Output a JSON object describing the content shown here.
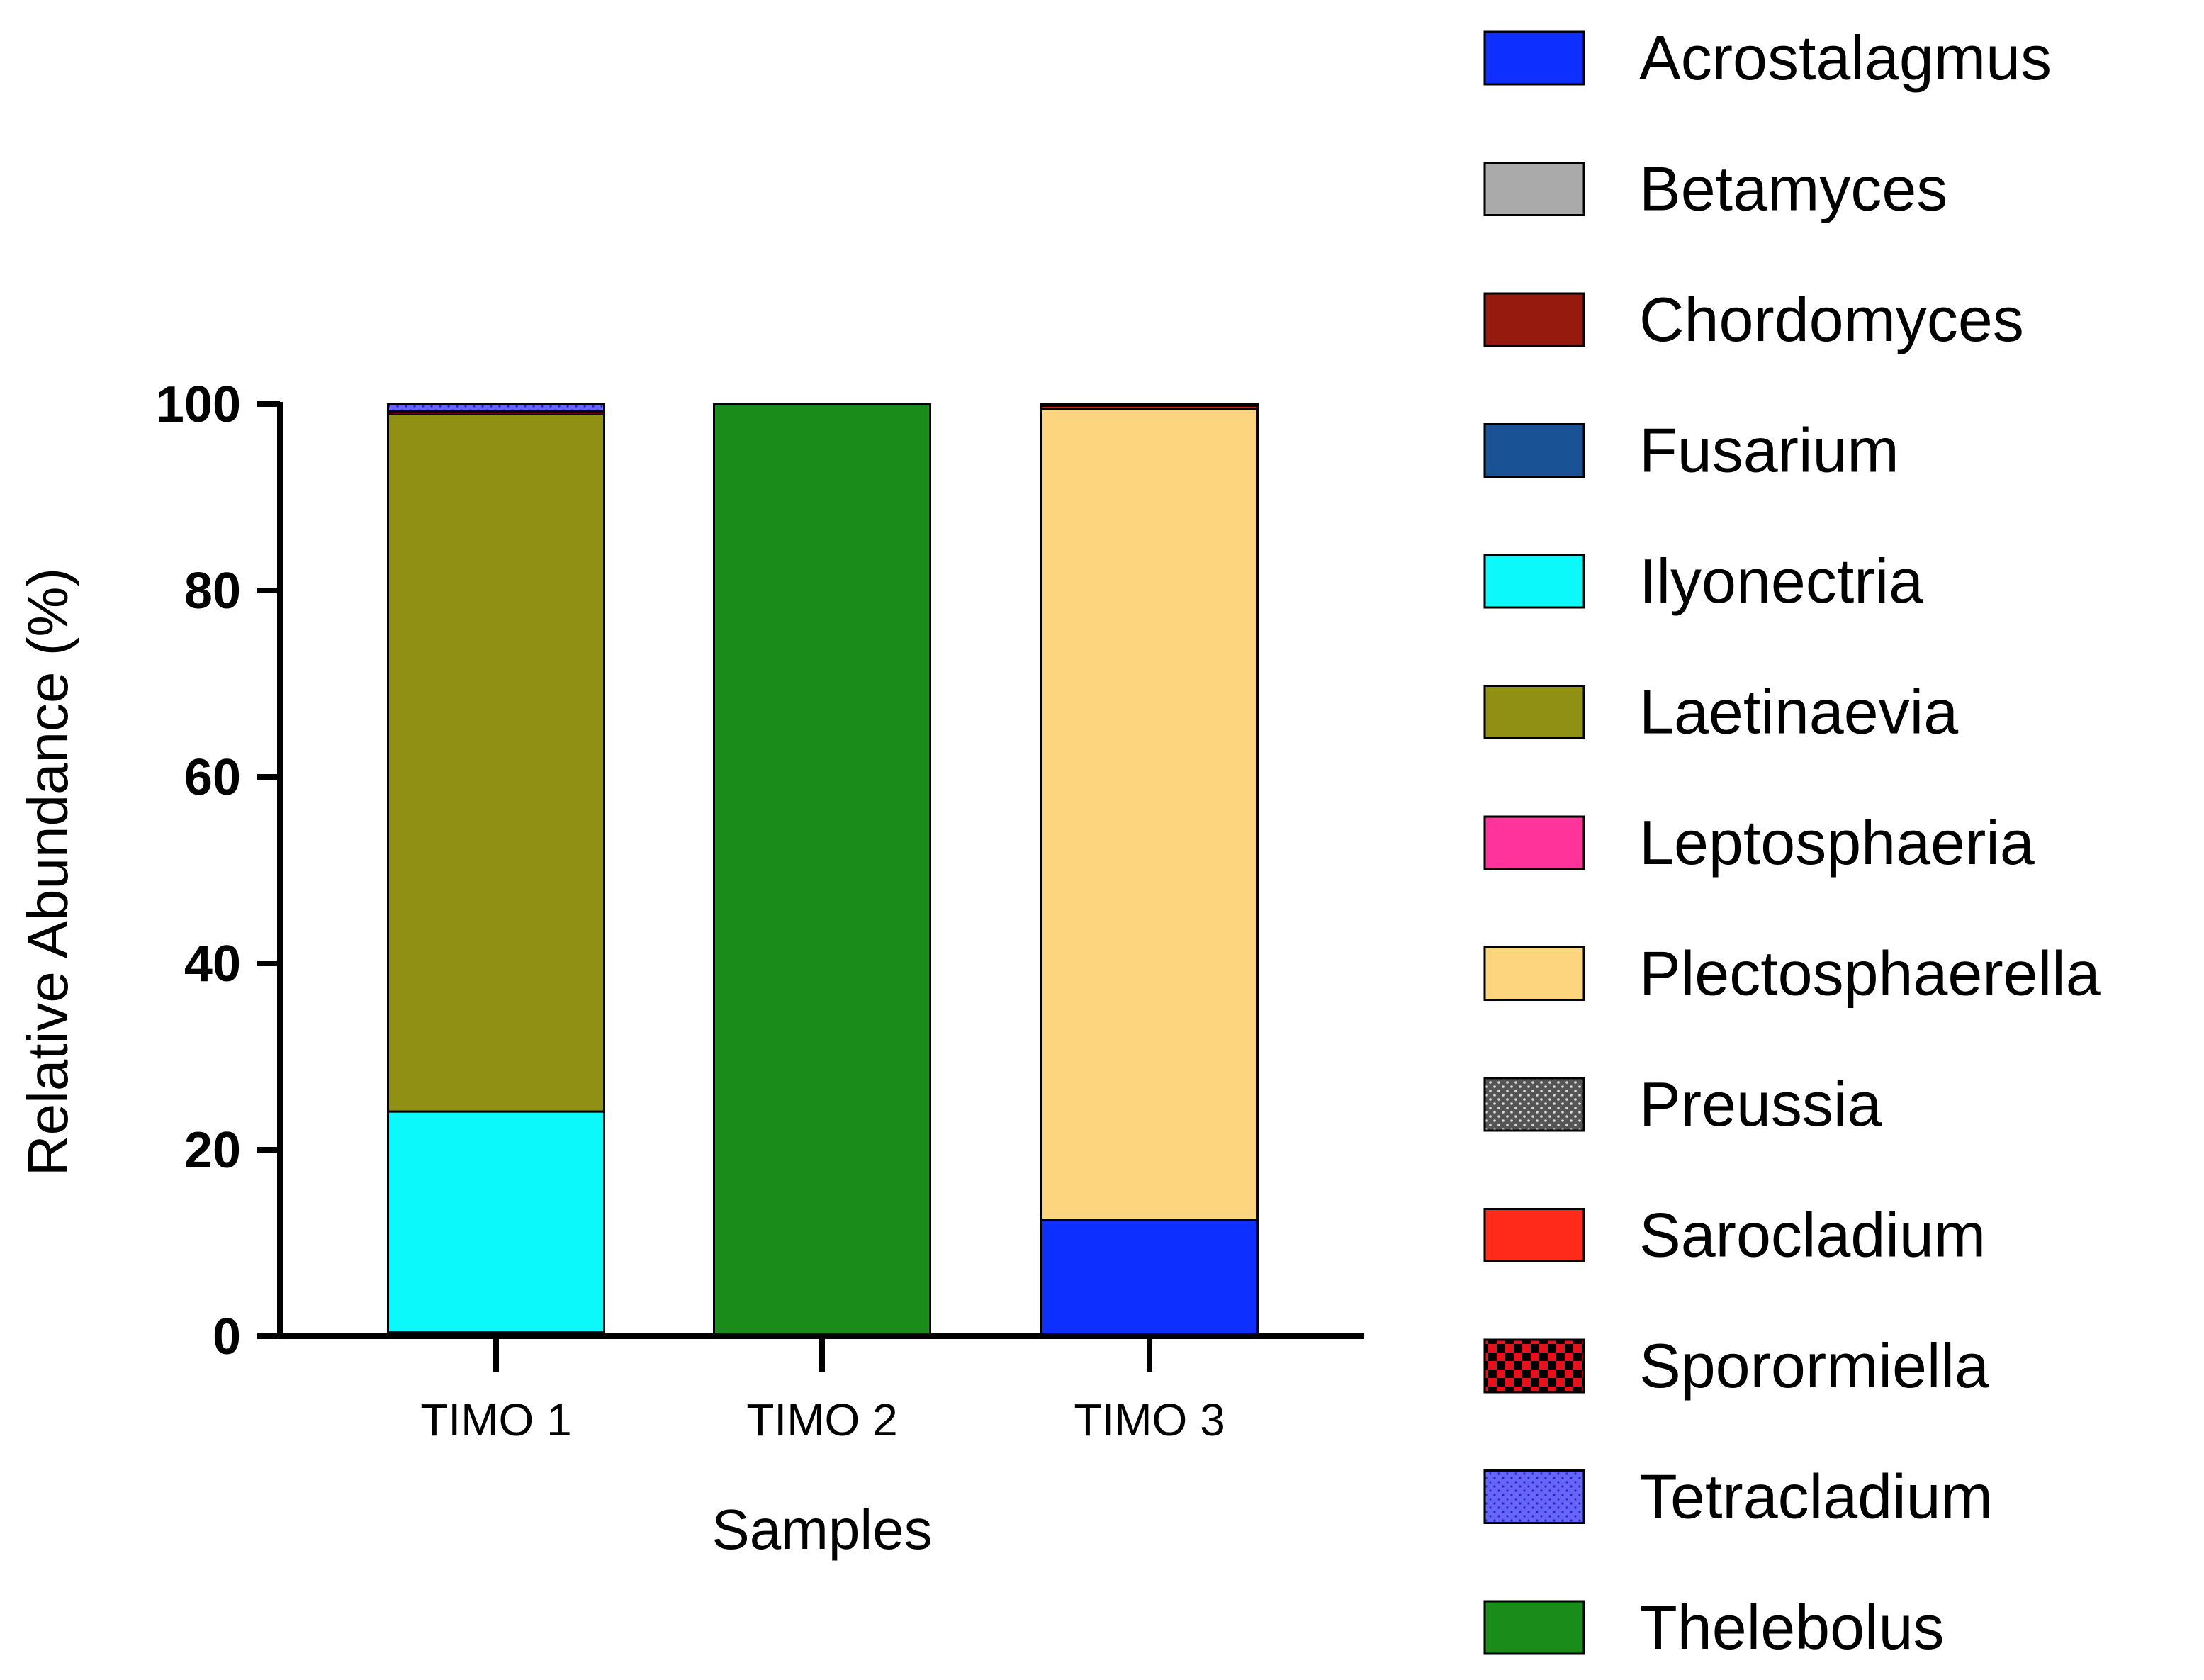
{
  "chart_data": {
    "type": "bar",
    "stacked": true,
    "title": "",
    "xlabel": "Samples",
    "ylabel": "Relative Abundance (%)",
    "ylim": [
      0,
      100
    ],
    "yticks": [
      0,
      20,
      40,
      60,
      80,
      100
    ],
    "categories": [
      "TIMO 1",
      "TIMO 2",
      "TIMO 3"
    ],
    "legend_position": "right",
    "series": [
      {
        "name": "Acrostalagmus",
        "color": "#0d2fff",
        "pattern": "solid",
        "values": [
          0,
          0,
          12.5
        ]
      },
      {
        "name": "Betamyces",
        "color": "#aaaaaa",
        "pattern": "solid",
        "values": [
          0,
          0,
          0
        ]
      },
      {
        "name": "Chordomyces",
        "color": "#961a0e",
        "pattern": "solid",
        "values": [
          0.4,
          0,
          0
        ]
      },
      {
        "name": "Fusarium",
        "color": "#1a5296",
        "pattern": "solid",
        "values": [
          0,
          0,
          0
        ]
      },
      {
        "name": "Ilyonectria",
        "color": "#0cf9fc",
        "pattern": "solid",
        "values": [
          23.7,
          0,
          0
        ]
      },
      {
        "name": "Laetinaevia",
        "color": "#909015",
        "pattern": "solid",
        "values": [
          74.8,
          0,
          0
        ]
      },
      {
        "name": "Leptosphaeria",
        "color": "#ff3399",
        "pattern": "solid",
        "values": [
          0.3,
          0,
          0
        ]
      },
      {
        "name": "Plectosphaerella",
        "color": "#fdd57e",
        "pattern": "solid",
        "values": [
          0,
          0,
          87.0
        ]
      },
      {
        "name": "Preussia",
        "color": "#555555",
        "pattern": "dots",
        "values": [
          0,
          0,
          0
        ]
      },
      {
        "name": "Sarocladium",
        "color": "#ff2a1a",
        "pattern": "solid",
        "values": [
          0,
          0,
          0.3
        ]
      },
      {
        "name": "Sporormiella",
        "color": "#e8101a",
        "pattern": "checker",
        "values": [
          0,
          0,
          0.2
        ]
      },
      {
        "name": "Tetracladium",
        "color": "#6666ff",
        "pattern": "dots",
        "values": [
          0.8,
          0,
          0
        ]
      },
      {
        "name": "Thelebolus",
        "color": "#1a8c1a",
        "pattern": "solid",
        "values": [
          0,
          100,
          0
        ]
      }
    ]
  }
}
